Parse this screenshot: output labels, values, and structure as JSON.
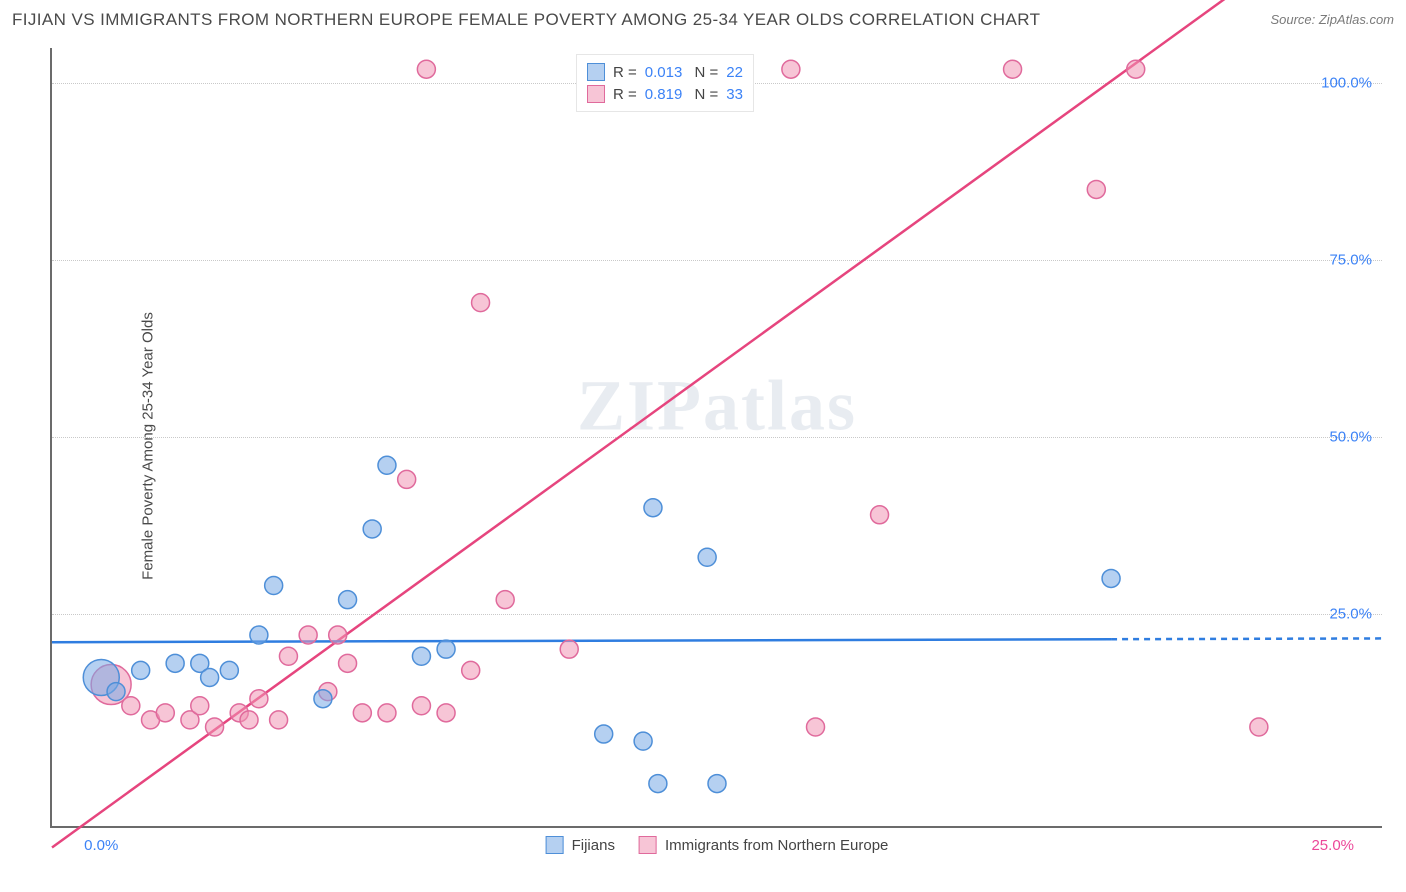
{
  "header": {
    "title": "FIJIAN VS IMMIGRANTS FROM NORTHERN EUROPE FEMALE POVERTY AMONG 25-34 YEAR OLDS CORRELATION CHART",
    "source": "Source: ZipAtlas.com"
  },
  "chart": {
    "type": "scatter",
    "watermark": "ZIPatlas",
    "background_color": "#ffffff",
    "grid_color": "#c9c9c9",
    "axis_color": "#6b6b6b",
    "yaxis_label": "Female Poverty Among 25-34 Year Olds",
    "y_domain": [
      -5,
      105
    ],
    "x_domain": [
      -1,
      26
    ],
    "y_ticks": [
      25.0,
      50.0,
      75.0,
      100.0
    ],
    "y_tick_labels": [
      "25.0%",
      "50.0%",
      "75.0%",
      "100.0%"
    ],
    "x_ticks": [
      {
        "pos": 0.0,
        "label": "0.0%",
        "color": "blue"
      },
      {
        "pos": 25.0,
        "label": "25.0%",
        "color": "pink"
      }
    ],
    "point_radius": 9,
    "point_border_width": 1.5,
    "line_width": 2.5,
    "series": {
      "fijians": {
        "label": "Fijians",
        "fill": "rgba(120,170,230,0.55)",
        "stroke": "#4e8fd8",
        "R": "0.013",
        "N": "22",
        "trend": {
          "y_at_x0": 21.0,
          "y_at_x25": 21.5,
          "extend_dashed_from_x": 20.5
        },
        "points": [
          {
            "x": 0.0,
            "y": 16,
            "r": 18
          },
          {
            "x": 0.3,
            "y": 14
          },
          {
            "x": 0.8,
            "y": 17
          },
          {
            "x": 1.5,
            "y": 18
          },
          {
            "x": 2.0,
            "y": 18
          },
          {
            "x": 2.2,
            "y": 16
          },
          {
            "x": 2.6,
            "y": 17
          },
          {
            "x": 3.2,
            "y": 22
          },
          {
            "x": 3.5,
            "y": 29
          },
          {
            "x": 4.5,
            "y": 13
          },
          {
            "x": 5.0,
            "y": 27
          },
          {
            "x": 5.5,
            "y": 37
          },
          {
            "x": 5.8,
            "y": 46
          },
          {
            "x": 6.5,
            "y": 19
          },
          {
            "x": 7.0,
            "y": 20
          },
          {
            "x": 10.2,
            "y": 8
          },
          {
            "x": 11.0,
            "y": 7
          },
          {
            "x": 11.2,
            "y": 40
          },
          {
            "x": 11.3,
            "y": 1
          },
          {
            "x": 12.3,
            "y": 33
          },
          {
            "x": 12.5,
            "y": 1
          },
          {
            "x": 20.5,
            "y": 30
          }
        ]
      },
      "immigrants": {
        "label": "Immigrants from Northern Europe",
        "fill": "rgba(240,150,180,0.55)",
        "stroke": "#e06a9c",
        "R": "0.819",
        "N": "33",
        "trend": {
          "y_at_x0": -3.0,
          "y_at_x25": 123.0
        },
        "points": [
          {
            "x": 0.2,
            "y": 15,
            "r": 20
          },
          {
            "x": 0.6,
            "y": 12
          },
          {
            "x": 1.0,
            "y": 10
          },
          {
            "x": 1.3,
            "y": 11
          },
          {
            "x": 1.8,
            "y": 10
          },
          {
            "x": 2.0,
            "y": 12
          },
          {
            "x": 2.3,
            "y": 9
          },
          {
            "x": 2.8,
            "y": 11
          },
          {
            "x": 3.0,
            "y": 10
          },
          {
            "x": 3.2,
            "y": 13
          },
          {
            "x": 3.6,
            "y": 10
          },
          {
            "x": 3.8,
            "y": 19
          },
          {
            "x": 4.2,
            "y": 22
          },
          {
            "x": 4.6,
            "y": 14
          },
          {
            "x": 4.8,
            "y": 22
          },
          {
            "x": 5.0,
            "y": 18
          },
          {
            "x": 5.3,
            "y": 11
          },
          {
            "x": 5.8,
            "y": 11
          },
          {
            "x": 6.2,
            "y": 44
          },
          {
            "x": 6.5,
            "y": 12
          },
          {
            "x": 6.6,
            "y": 102
          },
          {
            "x": 7.0,
            "y": 11
          },
          {
            "x": 7.5,
            "y": 17
          },
          {
            "x": 7.7,
            "y": 69
          },
          {
            "x": 8.2,
            "y": 27
          },
          {
            "x": 9.5,
            "y": 20
          },
          {
            "x": 14.0,
            "y": 102
          },
          {
            "x": 14.5,
            "y": 9
          },
          {
            "x": 15.8,
            "y": 39
          },
          {
            "x": 18.5,
            "y": 102
          },
          {
            "x": 20.2,
            "y": 85
          },
          {
            "x": 21.0,
            "y": 102
          },
          {
            "x": 23.5,
            "y": 9
          }
        ]
      }
    },
    "legend_top": [
      {
        "swatch": "blue",
        "r_val": "0.013",
        "n_val": "22"
      },
      {
        "swatch": "pink",
        "r_val": "0.819",
        "n_val": "33"
      }
    ],
    "legend_bottom": [
      {
        "swatch": "blue",
        "label": "Fijians"
      },
      {
        "swatch": "pink",
        "label": "Immigrants from Northern Europe"
      }
    ]
  }
}
